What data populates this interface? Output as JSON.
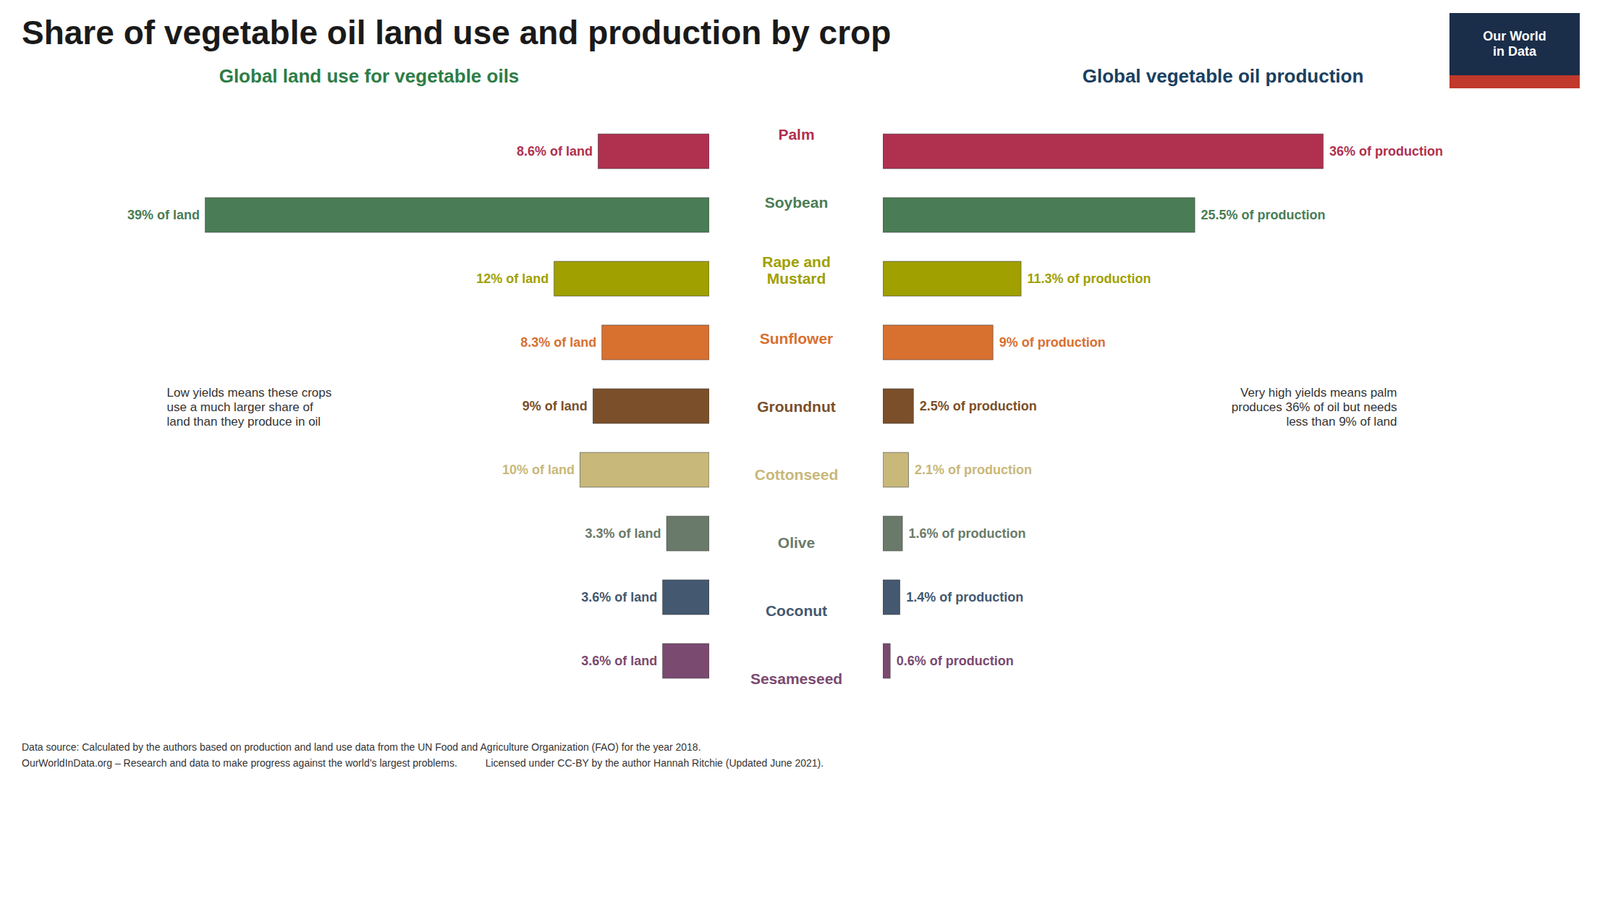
{
  "chart_data": {
    "type": "bar",
    "orientation": "horizontal",
    "title": "Share of vegetable oil land use and production by crop",
    "categories": [
      "Palm",
      "Soybean",
      "Rape and\nMustard",
      "Sunflower",
      "Groundnut",
      "Cottonseed",
      "Olive",
      "Coconut",
      "Sesameseed"
    ],
    "colors": [
      "#b03050",
      "#4a7c55",
      "#a0a000",
      "#d87030",
      "#7a4f2a",
      "#c8b87a",
      "#6a7a6a",
      "#445870",
      "#7a4a70"
    ],
    "series": [
      {
        "name": "Global land use for vegetable oils",
        "color": "#2d7d46",
        "values": [
          8.6,
          39.0,
          12.0,
          8.3,
          9.0,
          10.0,
          3.3,
          3.6,
          3.6
        ],
        "value_labels": [
          "8.6% of land",
          "39% of land",
          "12% of land",
          "8.3% of land",
          "9% of land",
          "10% of land",
          "3.3% of land",
          "3.6% of land",
          "3.6% of land"
        ]
      },
      {
        "name": "Global vegetable oil production",
        "color": "#1a4060",
        "values": [
          36.0,
          25.5,
          11.3,
          9.0,
          2.5,
          2.1,
          1.6,
          1.4,
          0.6
        ],
        "value_labels": [
          "36% of production",
          "25.5% of production",
          "11.3% of production",
          "9% of production",
          "2.5% of production",
          "2.1% of production",
          "1.6% of production",
          "1.4% of production",
          "0.6% of production"
        ]
      }
    ],
    "xlim": [
      0,
      42
    ],
    "tick_labels": false,
    "data_labels": true,
    "annotations": [
      "Low yields means these crops\nuse a much larger share of\nland than they produce in oil",
      "Very high yields means palm\nproduces 36% of oil but needs\nless than 9% of land"
    ],
    "caption": [
      "Data source: Calculated by the authors based on production and land use data from the UN Food and Agriculture Organization (FAO) for the year 2018.",
      "OurWorldInData.org – Research and data to make progress against the world’s largest problems.          Licensed under CC-BY by the author Hannah Ritchie (Updated June 2021)."
    ],
    "logo": "Our World\nin Data"
  }
}
